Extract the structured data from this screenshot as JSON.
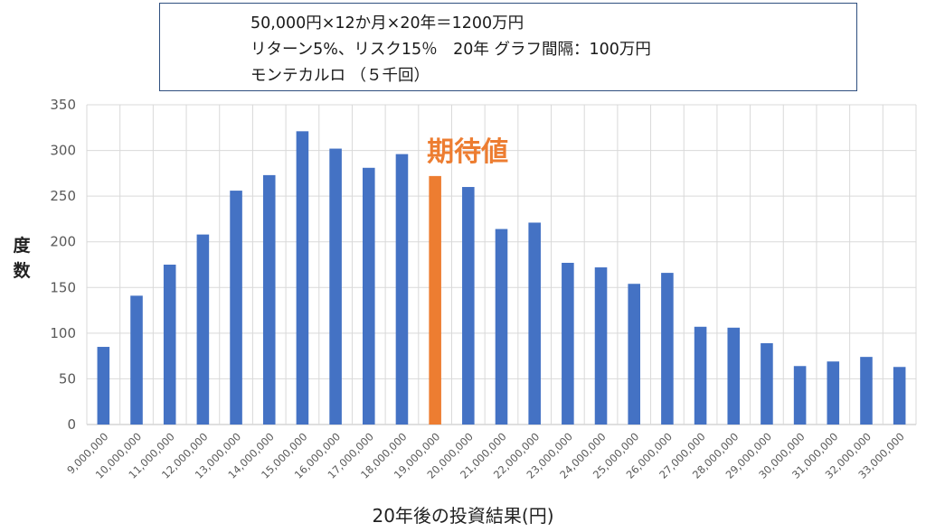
{
  "info_box": {
    "line1": "50,000円×12か月×20年＝1200万円",
    "line2": "リターン5%、リスク15％　20年 グラフ間隔：100万円",
    "line3": "モンテカルロ （５千回）"
  },
  "chart_data": {
    "type": "bar",
    "title": "",
    "xlabel": "20年後の投資結果(円)",
    "ylabel": "度数",
    "ylim": [
      0,
      350
    ],
    "yticks": [
      0,
      50,
      100,
      150,
      200,
      250,
      300,
      350
    ],
    "grid": true,
    "categories": [
      "9,000,000",
      "10,000,000",
      "11,000,000",
      "12,000,000",
      "13,000,000",
      "14,000,000",
      "15,000,000",
      "16,000,000",
      "17,000,000",
      "18,000,000",
      "19,000,000",
      "20,000,000",
      "21,000,000",
      "22,000,000",
      "23,000,000",
      "24,000,000",
      "25,000,000",
      "26,000,000",
      "27,000,000",
      "28,000,000",
      "29,000,000",
      "30,000,000",
      "31,000,000",
      "32,000,000",
      "33,000,000"
    ],
    "values": [
      85,
      141,
      175,
      208,
      256,
      273,
      321,
      302,
      281,
      296,
      272,
      260,
      214,
      221,
      177,
      172,
      154,
      166,
      107,
      106,
      89,
      64,
      69,
      74,
      63
    ],
    "highlight_index": 10,
    "annotation": "期待値",
    "colors": {
      "bar": "#4472c4",
      "highlight": "#ed7d31",
      "grid": "#d9d9d9",
      "axis": "#bfbfbf"
    }
  }
}
